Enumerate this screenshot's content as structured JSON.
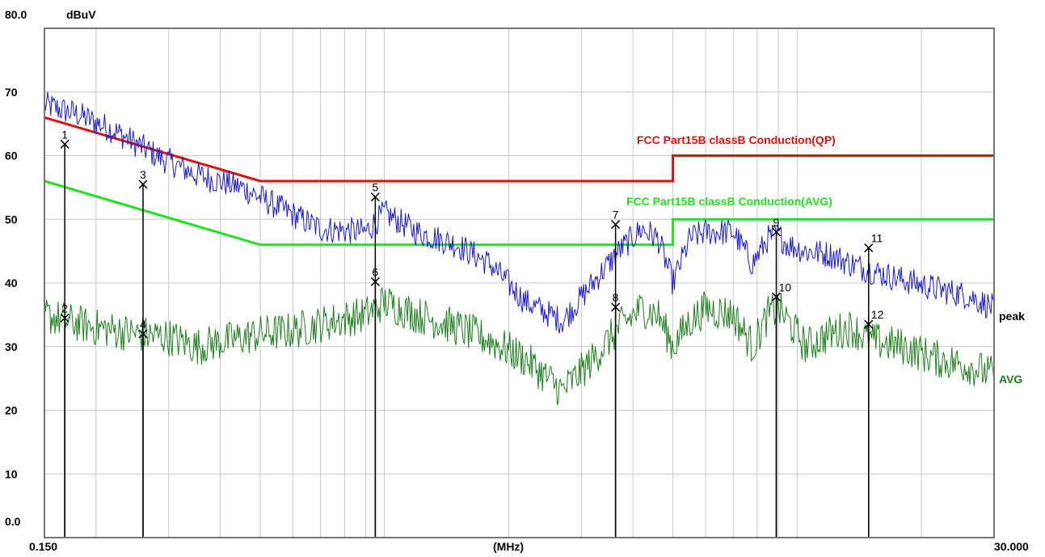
{
  "chart_data": {
    "type": "line",
    "unit_label": "dBuV",
    "ylim": [
      0.0,
      80.0
    ],
    "y_ticks": [
      {
        "value": 80,
        "label": "80.0"
      },
      {
        "value": 70,
        "label": "70"
      },
      {
        "value": 60,
        "label": "60"
      },
      {
        "value": 50,
        "label": "50"
      },
      {
        "value": 40,
        "label": "40"
      },
      {
        "value": 30,
        "label": "30"
      },
      {
        "value": 20,
        "label": "20"
      },
      {
        "value": 10,
        "label": "10"
      },
      {
        "value": 0,
        "label": "0.0"
      }
    ],
    "x_axis": {
      "scale": "log",
      "min": 0.15,
      "max": 30.0,
      "min_label": "0.150",
      "max_label": "30.000",
      "unit_label": "(MHz)"
    },
    "grid": true,
    "limits": [
      {
        "name": "FCC  Part15B classB Conduction(QP)",
        "color": "#e01010",
        "points": [
          [
            0.15,
            66
          ],
          [
            0.5,
            56
          ],
          [
            5.0,
            56
          ],
          [
            5.0,
            60
          ],
          [
            30.0,
            60
          ]
        ]
      },
      {
        "name": "FCC  Part15B classB Conduction(AVG)",
        "color": "#22e022",
        "points": [
          [
            0.15,
            56
          ],
          [
            0.5,
            46
          ],
          [
            5.0,
            46
          ],
          [
            5.0,
            50
          ],
          [
            30.0,
            50
          ]
        ]
      }
    ],
    "series": [
      {
        "name": "peak",
        "color": "#1a1ad0",
        "x": [
          0.15,
          0.18,
          0.22,
          0.28,
          0.35,
          0.45,
          0.55,
          0.7,
          0.9,
          1.0,
          1.2,
          1.5,
          1.8,
          2.2,
          2.7,
          3.2,
          3.7,
          4.2,
          4.6,
          5.0,
          5.5,
          6.0,
          7.0,
          7.8,
          8.5,
          9.0,
          9.5,
          10.5,
          12.0,
          13.5,
          15.0,
          18.0,
          22.0,
          26.0,
          30.0
        ],
        "y": [
          68,
          66.5,
          64,
          60,
          57,
          55,
          52,
          48.5,
          48,
          51,
          48,
          46,
          43,
          37,
          34,
          40,
          45,
          48.5,
          47,
          40,
          47,
          48,
          48,
          43,
          47,
          47.5,
          46,
          45,
          44.5,
          43,
          42,
          40.5,
          39,
          38,
          36
        ]
      },
      {
        "name": "AVG",
        "color": "#1e7e1e",
        "x": [
          0.15,
          0.17,
          0.2,
          0.25,
          0.3,
          0.35,
          0.42,
          0.5,
          0.6,
          0.75,
          0.9,
          1.0,
          1.2,
          1.5,
          1.8,
          2.2,
          2.7,
          3.2,
          3.7,
          4.2,
          4.6,
          5.0,
          5.5,
          6.0,
          7.0,
          7.8,
          8.5,
          9.0,
          9.5,
          10.5,
          12.0,
          13.5,
          15.0,
          18.0,
          22.0,
          26.0,
          30.0
        ],
        "y": [
          35,
          34,
          33,
          32,
          31.5,
          30,
          31,
          32,
          32.5,
          34,
          35,
          37,
          35,
          33,
          31,
          28,
          23,
          28,
          33,
          36,
          35,
          30,
          34,
          36,
          35,
          30,
          35,
          36,
          34,
          30,
          32,
          33,
          31,
          30,
          28,
          27,
          25.5
        ]
      }
    ],
    "markers": [
      {
        "label": "1",
        "freq": 0.168,
        "level": 61.8
      },
      {
        "label": "2",
        "freq": 0.168,
        "level": 34.5
      },
      {
        "label": "3",
        "freq": 0.26,
        "level": 55.5
      },
      {
        "label": "4",
        "freq": 0.26,
        "level": 32.0
      },
      {
        "label": "5",
        "freq": 0.95,
        "level": 53.5
      },
      {
        "label": "6",
        "freq": 0.95,
        "level": 40.2
      },
      {
        "label": "7",
        "freq": 3.63,
        "level": 49.2
      },
      {
        "label": "8",
        "freq": 3.63,
        "level": 36.2
      },
      {
        "label": "9",
        "freq": 8.9,
        "level": 48.0
      },
      {
        "label": "10",
        "freq": 8.9,
        "level": 37.8
      },
      {
        "label": "11",
        "freq": 14.9,
        "level": 45.5
      },
      {
        "label": "12",
        "freq": 14.9,
        "level": 33.5
      }
    ]
  }
}
